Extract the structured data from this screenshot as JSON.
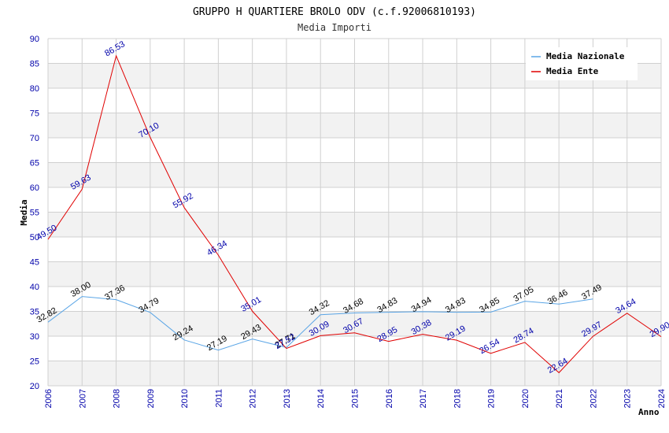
{
  "chart_data": {
    "type": "line",
    "title": "GRUPPO H QUARTIERE BROLO ODV (c.f.92006810193)",
    "subtitle": "Media Importi",
    "xlabel": "Anno",
    "ylabel": "Media",
    "ylim": [
      20,
      90
    ],
    "ytick_step": 5,
    "grid": true,
    "legend_position": "top-right",
    "categories": [
      "2006",
      "2007",
      "2008",
      "2009",
      "2010",
      "2011",
      "2012",
      "2013",
      "2014",
      "2015",
      "2016",
      "2017",
      "2018",
      "2019",
      "2020",
      "2021",
      "2022",
      "2023",
      "2024"
    ],
    "series": [
      {
        "name": "Media Nazionale",
        "color": "#5aa5e6",
        "values": [
          32.82,
          38.0,
          37.36,
          34.79,
          29.24,
          27.19,
          29.43,
          27.71,
          34.32,
          34.68,
          34.83,
          34.94,
          34.83,
          34.85,
          37.05,
          36.46,
          37.49,
          null,
          null
        ],
        "labels": [
          "32.82",
          "38.00",
          "37.36",
          "34.79",
          "29.24",
          "27.19",
          "29.43",
          "27.71",
          "34.32",
          "34.68",
          "34.83",
          "34.94",
          "34.83",
          "34.85",
          "37.05",
          "36.46",
          "37.49",
          "",
          ""
        ]
      },
      {
        "name": "Media Ente",
        "color": "#e00000",
        "values": [
          49.5,
          59.63,
          86.53,
          70.1,
          55.92,
          46.34,
          35.01,
          27.52,
          30.09,
          30.67,
          28.95,
          30.38,
          29.19,
          26.54,
          28.74,
          22.64,
          29.97,
          34.64,
          29.9
        ],
        "labels": [
          "49.50",
          "59.63",
          "86.53",
          "70.10",
          "55.92",
          "46.34",
          "35.01",
          "27.52",
          "30.09",
          "30.67",
          "28.95",
          "30.38",
          "29.19",
          "26.54",
          "28.74",
          "22.64",
          "29.97",
          "34.64",
          "29.90"
        ]
      }
    ]
  }
}
